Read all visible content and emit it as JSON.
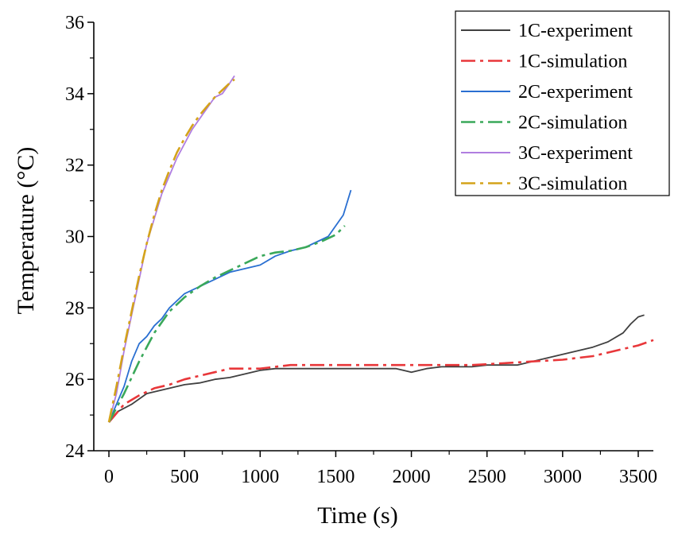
{
  "chart_data": {
    "type": "line",
    "title": "",
    "xlabel": "Time (s)",
    "ylabel": "Temperature (°C)",
    "xlim": [
      -100,
      3600
    ],
    "ylim": [
      24,
      36
    ],
    "x_ticks": [
      0,
      500,
      1000,
      1500,
      2000,
      2500,
      3000,
      3500
    ],
    "y_ticks": [
      24,
      26,
      28,
      30,
      32,
      34,
      36
    ],
    "grid": false,
    "legend_position": "top-right",
    "series": [
      {
        "name": "1C-experiment",
        "color": "#404040",
        "style": "solid",
        "points": [
          [
            0,
            24.8
          ],
          [
            60,
            25.1
          ],
          [
            150,
            25.3
          ],
          [
            250,
            25.6
          ],
          [
            400,
            25.75
          ],
          [
            500,
            25.85
          ],
          [
            600,
            25.9
          ],
          [
            700,
            26.0
          ],
          [
            800,
            26.05
          ],
          [
            900,
            26.15
          ],
          [
            1000,
            26.25
          ],
          [
            1100,
            26.3
          ],
          [
            1200,
            26.3
          ],
          [
            1300,
            26.3
          ],
          [
            1400,
            26.3
          ],
          [
            1500,
            26.3
          ],
          [
            1600,
            26.3
          ],
          [
            1700,
            26.3
          ],
          [
            1800,
            26.3
          ],
          [
            1900,
            26.3
          ],
          [
            2000,
            26.2
          ],
          [
            2100,
            26.3
          ],
          [
            2200,
            26.35
          ],
          [
            2300,
            26.35
          ],
          [
            2400,
            26.35
          ],
          [
            2500,
            26.4
          ],
          [
            2600,
            26.4
          ],
          [
            2700,
            26.4
          ],
          [
            2800,
            26.5
          ],
          [
            2900,
            26.6
          ],
          [
            3000,
            26.7
          ],
          [
            3100,
            26.8
          ],
          [
            3200,
            26.9
          ],
          [
            3300,
            27.05
          ],
          [
            3400,
            27.3
          ],
          [
            3450,
            27.55
          ],
          [
            3500,
            27.75
          ],
          [
            3540,
            27.8
          ]
        ]
      },
      {
        "name": "1C-simulation",
        "color": "#e8373a",
        "style": "dashdot",
        "points": [
          [
            0,
            24.8
          ],
          [
            100,
            25.3
          ],
          [
            200,
            25.55
          ],
          [
            300,
            25.75
          ],
          [
            400,
            25.85
          ],
          [
            500,
            26.0
          ],
          [
            600,
            26.1
          ],
          [
            700,
            26.2
          ],
          [
            800,
            26.3
          ],
          [
            900,
            26.3
          ],
          [
            1000,
            26.3
          ],
          [
            1100,
            26.35
          ],
          [
            1200,
            26.4
          ],
          [
            1400,
            26.4
          ],
          [
            1600,
            26.4
          ],
          [
            1800,
            26.4
          ],
          [
            2000,
            26.4
          ],
          [
            2200,
            26.4
          ],
          [
            2400,
            26.4
          ],
          [
            2600,
            26.45
          ],
          [
            2800,
            26.5
          ],
          [
            3000,
            26.55
          ],
          [
            3100,
            26.6
          ],
          [
            3200,
            26.65
          ],
          [
            3300,
            26.75
          ],
          [
            3400,
            26.85
          ],
          [
            3500,
            26.95
          ],
          [
            3600,
            27.1
          ]
        ]
      },
      {
        "name": "2C-experiment",
        "color": "#2a6fd1",
        "style": "solid",
        "points": [
          [
            0,
            24.8
          ],
          [
            50,
            25.3
          ],
          [
            100,
            25.8
          ],
          [
            150,
            26.5
          ],
          [
            200,
            27.0
          ],
          [
            250,
            27.2
          ],
          [
            300,
            27.5
          ],
          [
            350,
            27.7
          ],
          [
            400,
            28.0
          ],
          [
            450,
            28.2
          ],
          [
            500,
            28.4
          ],
          [
            550,
            28.5
          ],
          [
            600,
            28.6
          ],
          [
            650,
            28.7
          ],
          [
            700,
            28.8
          ],
          [
            800,
            29.0
          ],
          [
            900,
            29.1
          ],
          [
            1000,
            29.2
          ],
          [
            1100,
            29.45
          ],
          [
            1200,
            29.6
          ],
          [
            1300,
            29.7
          ],
          [
            1400,
            29.9
          ],
          [
            1450,
            30.0
          ],
          [
            1500,
            30.3
          ],
          [
            1550,
            30.6
          ],
          [
            1600,
            31.3
          ]
        ]
      },
      {
        "name": "2C-simulation",
        "color": "#3aa85a",
        "style": "dashdot",
        "points": [
          [
            0,
            24.8
          ],
          [
            100,
            25.6
          ],
          [
            200,
            26.5
          ],
          [
            300,
            27.3
          ],
          [
            400,
            27.9
          ],
          [
            500,
            28.3
          ],
          [
            600,
            28.6
          ],
          [
            700,
            28.85
          ],
          [
            800,
            29.05
          ],
          [
            900,
            29.25
          ],
          [
            1000,
            29.45
          ],
          [
            1100,
            29.55
          ],
          [
            1200,
            29.6
          ],
          [
            1300,
            29.7
          ],
          [
            1400,
            29.85
          ],
          [
            1500,
            30.05
          ],
          [
            1560,
            30.3
          ]
        ]
      },
      {
        "name": "3C-experiment",
        "color": "#b07ee0",
        "style": "solid",
        "points": [
          [
            0,
            24.8
          ],
          [
            50,
            25.6
          ],
          [
            100,
            26.8
          ],
          [
            150,
            27.8
          ],
          [
            200,
            28.8
          ],
          [
            250,
            29.8
          ],
          [
            300,
            30.5
          ],
          [
            350,
            31.2
          ],
          [
            400,
            31.7
          ],
          [
            450,
            32.2
          ],
          [
            500,
            32.6
          ],
          [
            550,
            33.0
          ],
          [
            600,
            33.3
          ],
          [
            650,
            33.6
          ],
          [
            700,
            33.9
          ],
          [
            750,
            34.0
          ],
          [
            800,
            34.3
          ],
          [
            830,
            34.5
          ]
        ]
      },
      {
        "name": "3C-simulation",
        "color": "#d4a31a",
        "style": "dashdot",
        "points": [
          [
            0,
            24.8
          ],
          [
            50,
            25.8
          ],
          [
            100,
            26.9
          ],
          [
            150,
            27.9
          ],
          [
            200,
            28.9
          ],
          [
            250,
            29.8
          ],
          [
            300,
            30.6
          ],
          [
            350,
            31.3
          ],
          [
            400,
            31.85
          ],
          [
            450,
            32.35
          ],
          [
            500,
            32.75
          ],
          [
            550,
            33.1
          ],
          [
            600,
            33.4
          ],
          [
            650,
            33.65
          ],
          [
            700,
            33.9
          ],
          [
            750,
            34.1
          ],
          [
            800,
            34.3
          ],
          [
            830,
            34.4
          ]
        ]
      }
    ]
  }
}
